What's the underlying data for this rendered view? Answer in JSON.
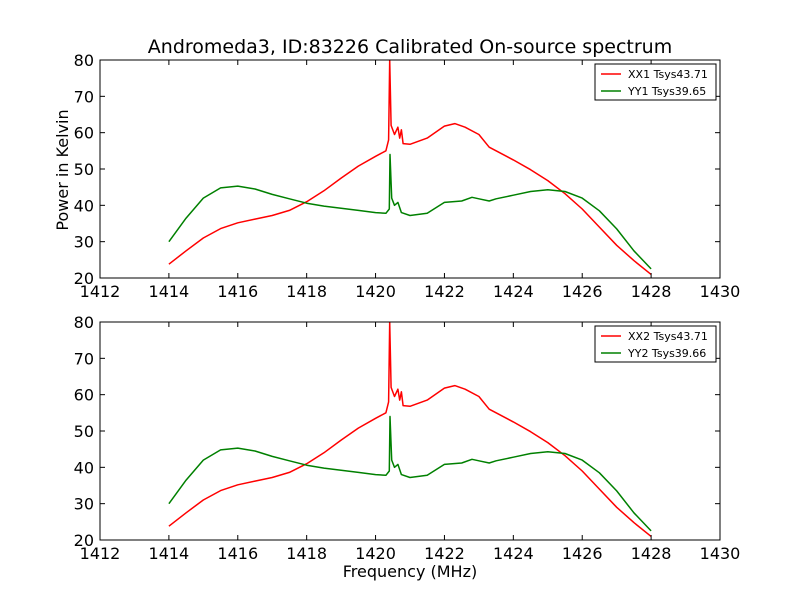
{
  "figure": {
    "title": "Andromeda3, ID:83226 Calibrated On-source spectrum",
    "xlabel": "Frequency (MHz)",
    "ylabel": "Power in Kelvin"
  },
  "chart_data": [
    {
      "type": "line",
      "title": "Andromeda3, ID:83226 Calibrated On-source spectrum",
      "xlabel": "",
      "ylabel": "Power in Kelvin",
      "xlim": [
        1412,
        1430
      ],
      "ylim": [
        20,
        80
      ],
      "xticks": [
        1412,
        1414,
        1416,
        1418,
        1420,
        1422,
        1424,
        1426,
        1428,
        1430
      ],
      "yticks": [
        20,
        30,
        40,
        50,
        60,
        70,
        80
      ],
      "grid": false,
      "legend_position": "top-right",
      "series": [
        {
          "name": "XX1 Tsys43.71",
          "color": "#ff0000",
          "x": [
            1414.0,
            1414.5,
            1415.0,
            1415.5,
            1416.0,
            1416.5,
            1417.0,
            1417.5,
            1418.0,
            1418.5,
            1419.0,
            1419.5,
            1420.0,
            1420.3,
            1420.38,
            1420.41,
            1420.45,
            1420.55,
            1420.65,
            1420.7,
            1420.75,
            1420.8,
            1421.0,
            1421.5,
            1422.0,
            1422.3,
            1422.6,
            1423.0,
            1423.3,
            1423.5,
            1424.0,
            1424.5,
            1425.0,
            1425.5,
            1426.0,
            1426.5,
            1427.0,
            1427.5,
            1428.0
          ],
          "values": [
            23.8,
            27.5,
            31.0,
            33.6,
            35.2,
            36.2,
            37.2,
            38.6,
            41.0,
            44.0,
            47.5,
            50.8,
            53.5,
            55.0,
            58.0,
            80.0,
            62.0,
            59.5,
            61.5,
            58.5,
            60.8,
            57.0,
            56.8,
            58.5,
            61.8,
            62.5,
            61.5,
            59.5,
            56.0,
            55.0,
            52.5,
            49.8,
            46.8,
            43.2,
            39.0,
            34.0,
            29.0,
            24.8,
            21.0
          ]
        },
        {
          "name": "YY1 Tsys39.65",
          "color": "#008000",
          "x": [
            1414.0,
            1414.5,
            1415.0,
            1415.5,
            1416.0,
            1416.5,
            1417.0,
            1417.5,
            1418.0,
            1418.5,
            1419.0,
            1419.5,
            1420.0,
            1420.3,
            1420.4,
            1420.42,
            1420.47,
            1420.55,
            1420.65,
            1420.75,
            1421.0,
            1421.5,
            1422.0,
            1422.5,
            1422.8,
            1423.0,
            1423.3,
            1423.5,
            1424.0,
            1424.5,
            1425.0,
            1425.5,
            1426.0,
            1426.5,
            1427.0,
            1427.5,
            1428.0
          ],
          "values": [
            30.0,
            36.5,
            42.0,
            44.8,
            45.3,
            44.5,
            43.0,
            41.8,
            40.6,
            39.8,
            39.2,
            38.6,
            38.0,
            37.8,
            39.0,
            54.0,
            42.0,
            40.0,
            40.8,
            38.0,
            37.2,
            37.8,
            40.8,
            41.2,
            42.2,
            41.8,
            41.2,
            41.8,
            42.8,
            43.8,
            44.3,
            43.8,
            42.0,
            38.5,
            33.5,
            27.5,
            22.5
          ]
        }
      ]
    },
    {
      "type": "line",
      "title": "",
      "xlabel": "Frequency (MHz)",
      "ylabel": "",
      "xlim": [
        1412,
        1430
      ],
      "ylim": [
        20,
        80
      ],
      "xticks": [
        1412,
        1414,
        1416,
        1418,
        1420,
        1422,
        1424,
        1426,
        1428,
        1430
      ],
      "yticks": [
        20,
        30,
        40,
        50,
        60,
        70,
        80
      ],
      "grid": false,
      "legend_position": "top-right",
      "series": [
        {
          "name": "XX2 Tsys43.71",
          "color": "#ff0000",
          "x": [
            1414.0,
            1414.5,
            1415.0,
            1415.5,
            1416.0,
            1416.5,
            1417.0,
            1417.5,
            1418.0,
            1418.5,
            1419.0,
            1419.5,
            1420.0,
            1420.3,
            1420.38,
            1420.41,
            1420.45,
            1420.55,
            1420.65,
            1420.7,
            1420.75,
            1420.8,
            1421.0,
            1421.5,
            1422.0,
            1422.3,
            1422.6,
            1423.0,
            1423.3,
            1423.5,
            1424.0,
            1424.5,
            1425.0,
            1425.5,
            1426.0,
            1426.5,
            1427.0,
            1427.5,
            1428.0
          ],
          "values": [
            23.8,
            27.5,
            31.0,
            33.6,
            35.2,
            36.2,
            37.2,
            38.6,
            41.0,
            44.0,
            47.5,
            50.8,
            53.5,
            55.0,
            58.0,
            80.0,
            62.0,
            59.5,
            61.5,
            58.5,
            60.8,
            57.0,
            56.8,
            58.5,
            61.8,
            62.5,
            61.5,
            59.5,
            56.0,
            55.0,
            52.5,
            49.8,
            46.8,
            43.2,
            39.0,
            34.0,
            29.0,
            24.8,
            21.0
          ]
        },
        {
          "name": "YY2 Tsys39.66",
          "color": "#008000",
          "x": [
            1414.0,
            1414.5,
            1415.0,
            1415.5,
            1416.0,
            1416.5,
            1417.0,
            1417.5,
            1418.0,
            1418.5,
            1419.0,
            1419.5,
            1420.0,
            1420.3,
            1420.4,
            1420.42,
            1420.47,
            1420.55,
            1420.65,
            1420.75,
            1421.0,
            1421.5,
            1422.0,
            1422.5,
            1422.8,
            1423.0,
            1423.3,
            1423.5,
            1424.0,
            1424.5,
            1425.0,
            1425.5,
            1426.0,
            1426.5,
            1427.0,
            1427.5,
            1428.0
          ],
          "values": [
            30.0,
            36.5,
            42.0,
            44.8,
            45.3,
            44.5,
            43.0,
            41.8,
            40.6,
            39.8,
            39.2,
            38.6,
            38.0,
            37.8,
            39.0,
            54.0,
            42.0,
            40.0,
            40.8,
            38.0,
            37.2,
            37.8,
            40.8,
            41.2,
            42.2,
            41.8,
            41.2,
            41.8,
            42.8,
            43.8,
            44.3,
            43.8,
            42.0,
            38.5,
            33.5,
            27.5,
            22.5
          ]
        }
      ]
    }
  ]
}
